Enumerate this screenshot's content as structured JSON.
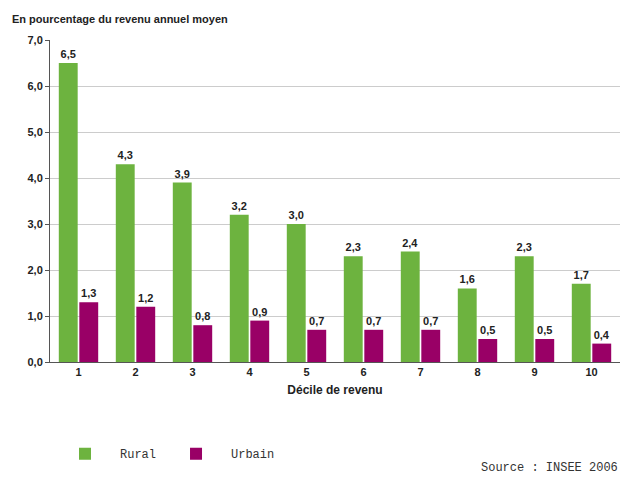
{
  "chart_data": {
    "type": "bar",
    "ylabel": "En pourcentage du revenu annuel moyen",
    "xlabel": "Décile de revenu",
    "annotations": [
      "Source : INSEE 2006"
    ],
    "categories": [
      "1",
      "2",
      "3",
      "4",
      "5",
      "6",
      "7",
      "8",
      "9",
      "10"
    ],
    "series": [
      {
        "name": "Rural",
        "color": "#6db33f",
        "values": [
          6.5,
          4.3,
          3.9,
          3.2,
          3.0,
          2.3,
          2.4,
          1.6,
          2.3,
          1.7
        ],
        "value_labels": [
          "6,5",
          "4,3",
          "3,9",
          "3,2",
          "3,0",
          "2,3",
          "2,4",
          "1,6",
          "2,3",
          "1,7"
        ]
      },
      {
        "name": "Urbain",
        "color": "#990066",
        "values": [
          1.3,
          1.2,
          0.8,
          0.9,
          0.7,
          0.7,
          0.7,
          0.5,
          0.5,
          0.4
        ],
        "value_labels": [
          "1,3",
          "1,2",
          "0,8",
          "0,9",
          "0,7",
          "0,7",
          "0,7",
          "0,5",
          "0,5",
          "0,4"
        ]
      }
    ],
    "ylim": [
      0,
      7
    ],
    "yticks": [
      {
        "value": 0,
        "label": "0,0"
      },
      {
        "value": 1,
        "label": "1,0"
      },
      {
        "value": 2,
        "label": "2,0"
      },
      {
        "value": 3,
        "label": "3,0"
      },
      {
        "value": 4,
        "label": "4,0"
      },
      {
        "value": 5,
        "label": "5,0"
      },
      {
        "value": 6,
        "label": "6,0"
      },
      {
        "value": 7,
        "label": "7,0"
      }
    ],
    "grid": true,
    "data_labels": true,
    "legend": "bottom left"
  }
}
